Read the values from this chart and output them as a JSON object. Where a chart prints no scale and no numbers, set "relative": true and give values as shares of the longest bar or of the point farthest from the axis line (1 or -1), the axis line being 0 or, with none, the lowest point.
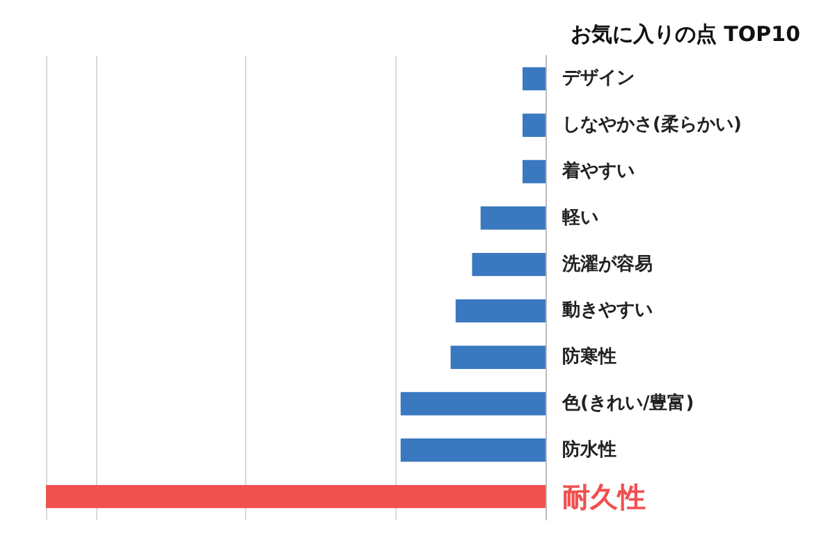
{
  "chart_data": {
    "type": "bar",
    "orientation": "horizontal",
    "relative": true,
    "title": "お気に入りの点 TOP10",
    "categories": [
      "デザイン",
      "しなやかさ(柔らかい)",
      "着やすい",
      "軽い",
      "洗濯が容易",
      "動きやすい",
      "防寒性",
      "色(きれい/豊富)",
      "防水性",
      "耐久性"
    ],
    "values": [
      0.046,
      0.046,
      0.046,
      0.13,
      0.147,
      0.18,
      0.19,
      0.29,
      0.29,
      1
    ],
    "colors": [
      "#3a78c0",
      "#3a78c0",
      "#3a78c0",
      "#3a78c0",
      "#3a78c0",
      "#3a78c0",
      "#3a78c0",
      "#3a78c0",
      "#3a78c0",
      "#f05050"
    ],
    "grid": "x"
  }
}
